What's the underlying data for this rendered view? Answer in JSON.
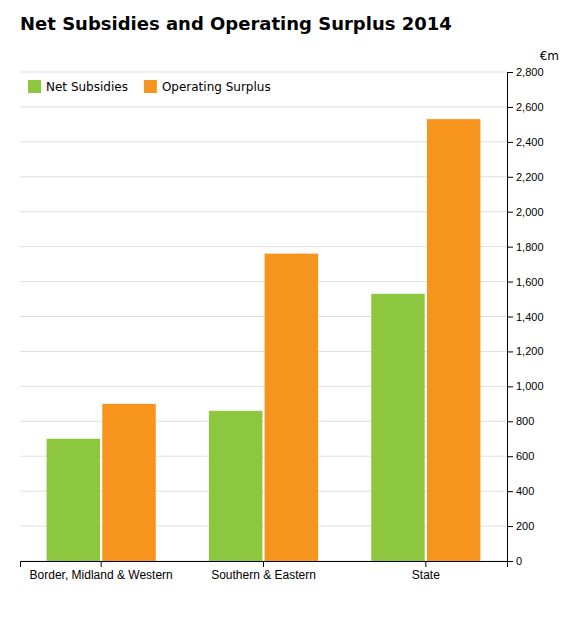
{
  "chart_data": {
    "type": "bar",
    "title": "Net Subsidies and Operating Surplus 2014",
    "ylabel": "€m",
    "categories": [
      "Border, Midland & Western",
      "Southern & Eastern",
      "State"
    ],
    "series": [
      {
        "name": "Net Subsidies",
        "color": "#8DC63F",
        "values": [
          700,
          860,
          1530
        ]
      },
      {
        "name": "Operating Surplus",
        "color": "#F7941D",
        "values": [
          900,
          1760,
          2530
        ]
      }
    ],
    "ylim": [
      0,
      2800
    ],
    "yticks": [
      0,
      200,
      400,
      600,
      800,
      {
        "value": 1000,
        "label": "1,000"
      },
      {
        "value": 1200,
        "label": "1,200"
      },
      {
        "value": 1400,
        "label": "1,400"
      },
      {
        "value": 1600,
        "label": "1,600"
      },
      {
        "value": 1800,
        "label": "1,800"
      },
      {
        "value": 2000,
        "label": "2,000"
      },
      {
        "value": 2200,
        "label": "2,200"
      },
      {
        "value": 2400,
        "label": "2,400"
      },
      {
        "value": 2600,
        "label": "2,600"
      },
      {
        "value": 2800,
        "label": "2,800"
      }
    ],
    "grid": true,
    "legend": "upper left"
  }
}
